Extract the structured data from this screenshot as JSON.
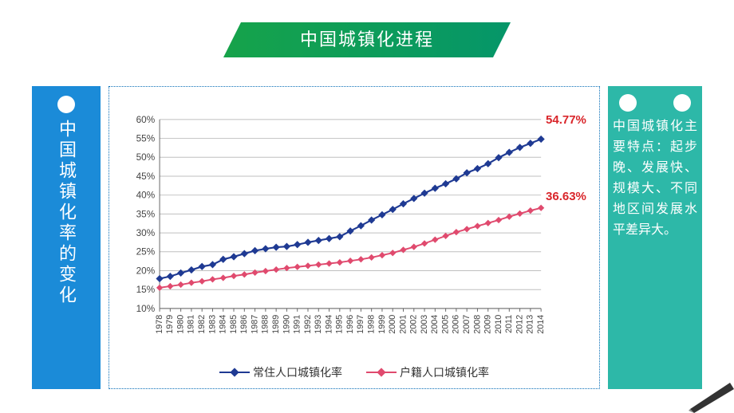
{
  "banner": {
    "text": "中国城镇化进程",
    "gradient_from": "#16a34a",
    "gradient_to": "#059669",
    "text_color": "#ffffff",
    "fontsize": 22
  },
  "left_panel": {
    "label": "中国城镇化率的变化",
    "bg": "#1b8bd8",
    "text_color": "#ffffff",
    "fontsize": 22
  },
  "right_panel": {
    "bg": "#2db8a8",
    "text_color": "#ffffff",
    "fontsize": 16,
    "text": "中国城镇化主要特点：起步晚、发展快、规模大、不同地区间发展水平差异大。"
  },
  "chart": {
    "type": "line",
    "x_categories": [
      "1978",
      "1979",
      "1980",
      "1981",
      "1982",
      "1983",
      "1984",
      "1985",
      "1986",
      "1987",
      "1988",
      "1989",
      "1990",
      "1991",
      "1992",
      "1993",
      "1994",
      "1995",
      "1996",
      "1997",
      "1998",
      "1999",
      "2000",
      "2001",
      "2002",
      "2003",
      "2004",
      "2005",
      "2006",
      "2007",
      "2008",
      "2009",
      "2010",
      "2011",
      "2012",
      "2013",
      "2014"
    ],
    "series": [
      {
        "name": "常住人口城镇化率",
        "color": "#1f3a93",
        "marker": "diamond",
        "marker_size": 8,
        "line_width": 2.2,
        "values": [
          17.9,
          18.5,
          19.4,
          20.2,
          21.1,
          21.6,
          23.0,
          23.7,
          24.5,
          25.3,
          25.8,
          26.2,
          26.4,
          26.9,
          27.5,
          28.0,
          28.5,
          29.0,
          30.5,
          31.9,
          33.4,
          34.8,
          36.2,
          37.7,
          39.1,
          40.5,
          41.8,
          43.0,
          44.3,
          45.9,
          47.0,
          48.3,
          49.9,
          51.3,
          52.6,
          53.7,
          54.8
        ],
        "end_label": "54.77%",
        "end_label_color": "#d9252a"
      },
      {
        "name": "户籍人口城镇化率",
        "color": "#e04a6e",
        "marker": "diamond",
        "marker_size": 7,
        "line_width": 2.0,
        "values": [
          15.5,
          15.9,
          16.3,
          16.8,
          17.2,
          17.7,
          18.1,
          18.6,
          19.0,
          19.5,
          19.9,
          20.3,
          20.7,
          21.0,
          21.3,
          21.6,
          21.9,
          22.2,
          22.6,
          23.0,
          23.5,
          24.1,
          24.7,
          25.5,
          26.3,
          27.2,
          28.2,
          29.2,
          30.2,
          31.0,
          31.8,
          32.6,
          33.4,
          34.3,
          35.1,
          35.9,
          36.6
        ],
        "end_label": "36.63%",
        "end_label_color": "#d9252a"
      }
    ],
    "y": {
      "min": 10,
      "max": 60,
      "step": 5,
      "suffix": "%",
      "fontsize": 12
    },
    "x_fontsize": 11,
    "background": "#ffffff",
    "gridline_color": "#bfbfbf",
    "axis_color": "#666666",
    "border_color": "#0a6fb7",
    "end_label_fontsize": 15
  },
  "legend": {
    "fontsize": 14,
    "items": [
      {
        "label": "常住人口城镇化率",
        "color": "#1f3a93"
      },
      {
        "label": "户籍人口城镇化率",
        "color": "#e04a6e"
      }
    ]
  }
}
